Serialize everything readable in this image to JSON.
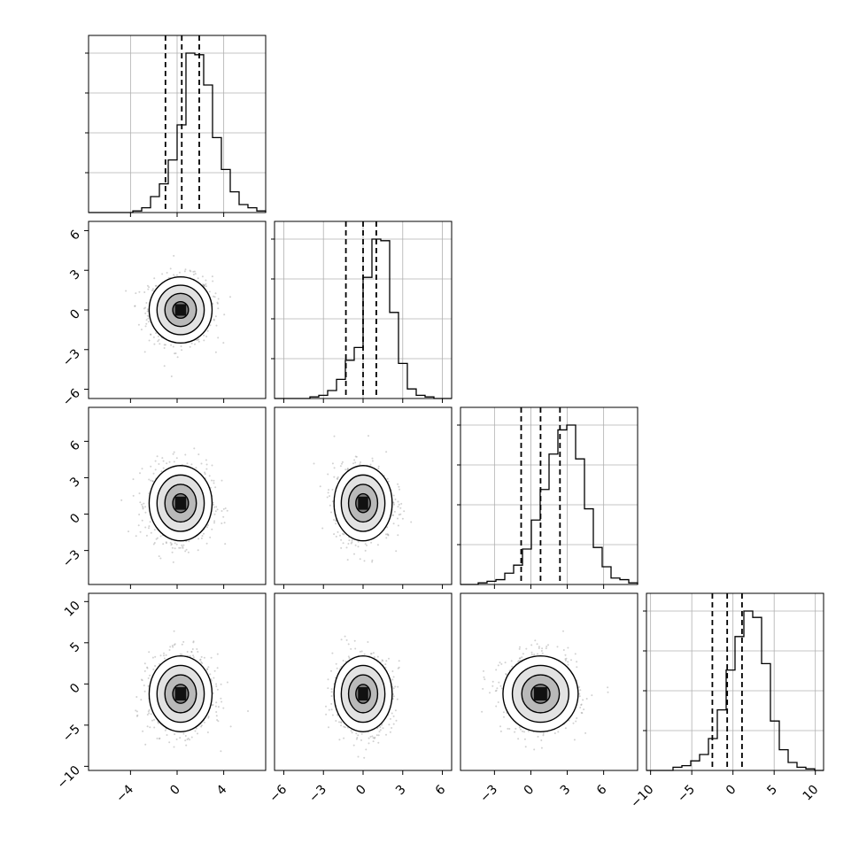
{
  "chart_data": {
    "type": "corner",
    "title": "",
    "parameters": [
      "",
      "",
      "",
      ""
    ],
    "grid": true,
    "ticks": [
      [
        -4,
        0,
        4
      ],
      [
        -6,
        -3,
        0,
        3,
        6
      ],
      [
        -3,
        0,
        3,
        6
      ],
      [
        -10,
        -5,
        0,
        5,
        10
      ]
    ],
    "tick_labels": [
      [
        "−4",
        "0",
        "4"
      ],
      [
        "−6",
        "−3",
        "0",
        "3",
        "6"
      ],
      [
        "−3",
        "0",
        "3",
        "6"
      ],
      [
        "−10",
        "−5",
        "0",
        "5",
        "10"
      ]
    ],
    "ranges": [
      [
        -7.6,
        7.6
      ],
      [
        -6.7,
        6.7
      ],
      [
        -5.8,
        8.8
      ],
      [
        -10.5,
        11.0
      ]
    ],
    "quantiles": [
      [
        -1.0,
        0.4,
        1.9
      ],
      [
        -1.3,
        0.0,
        1.0
      ],
      [
        -0.8,
        0.8,
        2.4
      ],
      [
        -2.5,
        -0.7,
        1.1
      ]
    ],
    "histograms": [
      {
        "x_edges_start": -7.6,
        "x_edges_end": 7.6,
        "counts": [
          0,
          0,
          0,
          0,
          0,
          1,
          3,
          10,
          18,
          33,
          55,
          100,
          99,
          80,
          47,
          27,
          13,
          5,
          3,
          1
        ]
      },
      {
        "x_edges_start": -6.7,
        "x_edges_end": 6.7,
        "counts": [
          0,
          0,
          0,
          0,
          1,
          2,
          5,
          12,
          24,
          32,
          76,
          100,
          99,
          54,
          22,
          6,
          2,
          1,
          0,
          0
        ]
      },
      {
        "x_edges_start": -5.8,
        "x_edges_end": 8.8,
        "counts": [
          0,
          0,
          1,
          2,
          3,
          7,
          12,
          22,
          40,
          59,
          81,
          96,
          99,
          78,
          47,
          23,
          11,
          4,
          3,
          1
        ]
      },
      {
        "x_edges_start": -10.5,
        "x_edges_end": 11.0,
        "counts": [
          0,
          0,
          0,
          2,
          3,
          6,
          10,
          20,
          38,
          63,
          84,
          100,
          96,
          67,
          31,
          13,
          5,
          2,
          1,
          0
        ]
      }
    ],
    "pairs": [
      {
        "row": 1,
        "col": 0,
        "mean": [
          0.3,
          0.0
        ],
        "sd": [
          1.35,
          1.25
        ]
      },
      {
        "row": 2,
        "col": 0,
        "mean": [
          0.3,
          0.9
        ],
        "sd": [
          1.35,
          1.55
        ]
      },
      {
        "row": 2,
        "col": 1,
        "mean": [
          0.0,
          0.9
        ],
        "sd": [
          1.1,
          1.55
        ]
      },
      {
        "row": 3,
        "col": 0,
        "mean": [
          0.3,
          -1.2
        ],
        "sd": [
          1.35,
          2.3
        ]
      },
      {
        "row": 3,
        "col": 1,
        "mean": [
          0.0,
          -1.2
        ],
        "sd": [
          1.1,
          2.3
        ]
      },
      {
        "row": 3,
        "col": 2,
        "mean": [
          0.8,
          -1.2
        ],
        "sd": [
          1.55,
          2.3
        ]
      }
    ],
    "contour_levels_sigma": [
      0.5,
      1.0,
      1.5,
      2.0
    ]
  }
}
